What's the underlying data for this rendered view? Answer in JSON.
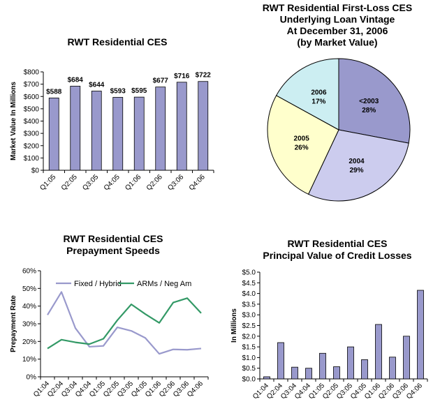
{
  "chart_data": [
    {
      "id": "ces_market_value",
      "type": "bar",
      "title": [
        "RWT Residential CES"
      ],
      "ylabel": "Market Value In Millions",
      "categories": [
        "Q1:05",
        "Q2:05",
        "Q3:05",
        "Q4:05",
        "Q1:06",
        "Q2:06",
        "Q3:06",
        "Q4:06"
      ],
      "values": [
        588,
        684,
        644,
        593,
        595,
        677,
        716,
        722
      ],
      "data_labels": [
        "$588",
        "$684",
        "$644",
        "$593",
        "$595",
        "$677",
        "$716",
        "$722"
      ],
      "ylim": [
        0,
        800
      ],
      "yticks": [
        "$0",
        "$100",
        "$200",
        "$300",
        "$400",
        "$500",
        "$600",
        "$700",
        "$800"
      ],
      "bar_color": "#9999CC",
      "grid": false
    },
    {
      "id": "loan_vintage",
      "type": "pie",
      "title": [
        "RWT Residential First-Loss CES",
        "Underlying Loan Vintage",
        "At December 31, 2006",
        "(by Market Value)"
      ],
      "slices": [
        {
          "label": "<2003",
          "pct_label": "28%",
          "value": 28,
          "color": "#9999CC"
        },
        {
          "label": "2004",
          "pct_label": "29%",
          "value": 29,
          "color": "#CCCCEE"
        },
        {
          "label": "2005",
          "pct_label": "26%",
          "value": 26,
          "color": "#FFFFCC"
        },
        {
          "label": "2006",
          "pct_label": "17%",
          "value": 17,
          "color": "#CCEEF2"
        }
      ]
    },
    {
      "id": "prepayment_speeds",
      "type": "line",
      "title": [
        "RWT Residential CES",
        "Prepayment Speeds"
      ],
      "ylabel": "Prepayment Rate",
      "categories": [
        "Q1:04",
        "Q2:04",
        "Q3:04",
        "Q4:04",
        "Q1:05",
        "Q2:05",
        "Q3:05",
        "Q4:05",
        "Q1:06",
        "Q2:06",
        "Q3:06",
        "Q4:06"
      ],
      "ylim": [
        0,
        60
      ],
      "yticks": [
        "0%",
        "10%",
        "20%",
        "30%",
        "40%",
        "50%",
        "60%"
      ],
      "legend_position": "top",
      "series": [
        {
          "name": "Fixed / Hybrid",
          "color": "#9999CC",
          "values": [
            35,
            48,
            27.5,
            17,
            17.5,
            28,
            26,
            22,
            13,
            15.5,
            15.3,
            16
          ]
        },
        {
          "name": "ARMs / Neg Am",
          "color": "#339966",
          "values": [
            16,
            21,
            19.5,
            18.5,
            21.5,
            32,
            41,
            35.5,
            30.5,
            42,
            44.5,
            36
          ]
        }
      ],
      "grid": false
    },
    {
      "id": "credit_losses",
      "type": "bar",
      "title": [
        "RWT Residential CES",
        "Principal Value of Credit Losses"
      ],
      "ylabel": "In Millions",
      "categories": [
        "Q1:04",
        "Q2:04",
        "Q3:04",
        "Q4:04",
        "Q1:05",
        "Q2:05",
        "Q3:05",
        "Q4:05",
        "Q1:06",
        "Q2:06",
        "Q3:06",
        "Q4:06"
      ],
      "values": [
        0.1,
        1.7,
        0.55,
        0.5,
        1.2,
        0.57,
        1.5,
        0.9,
        2.55,
        1.02,
        2.0,
        4.15
      ],
      "ylim": [
        0,
        5
      ],
      "yticks": [
        "$0.0",
        "$0.5",
        "$1.0",
        "$1.5",
        "$2.0",
        "$2.5",
        "$3.0",
        "$3.5",
        "$4.0",
        "$4.5",
        "$5.0"
      ],
      "bar_color": "#9999CC",
      "grid": false
    }
  ]
}
